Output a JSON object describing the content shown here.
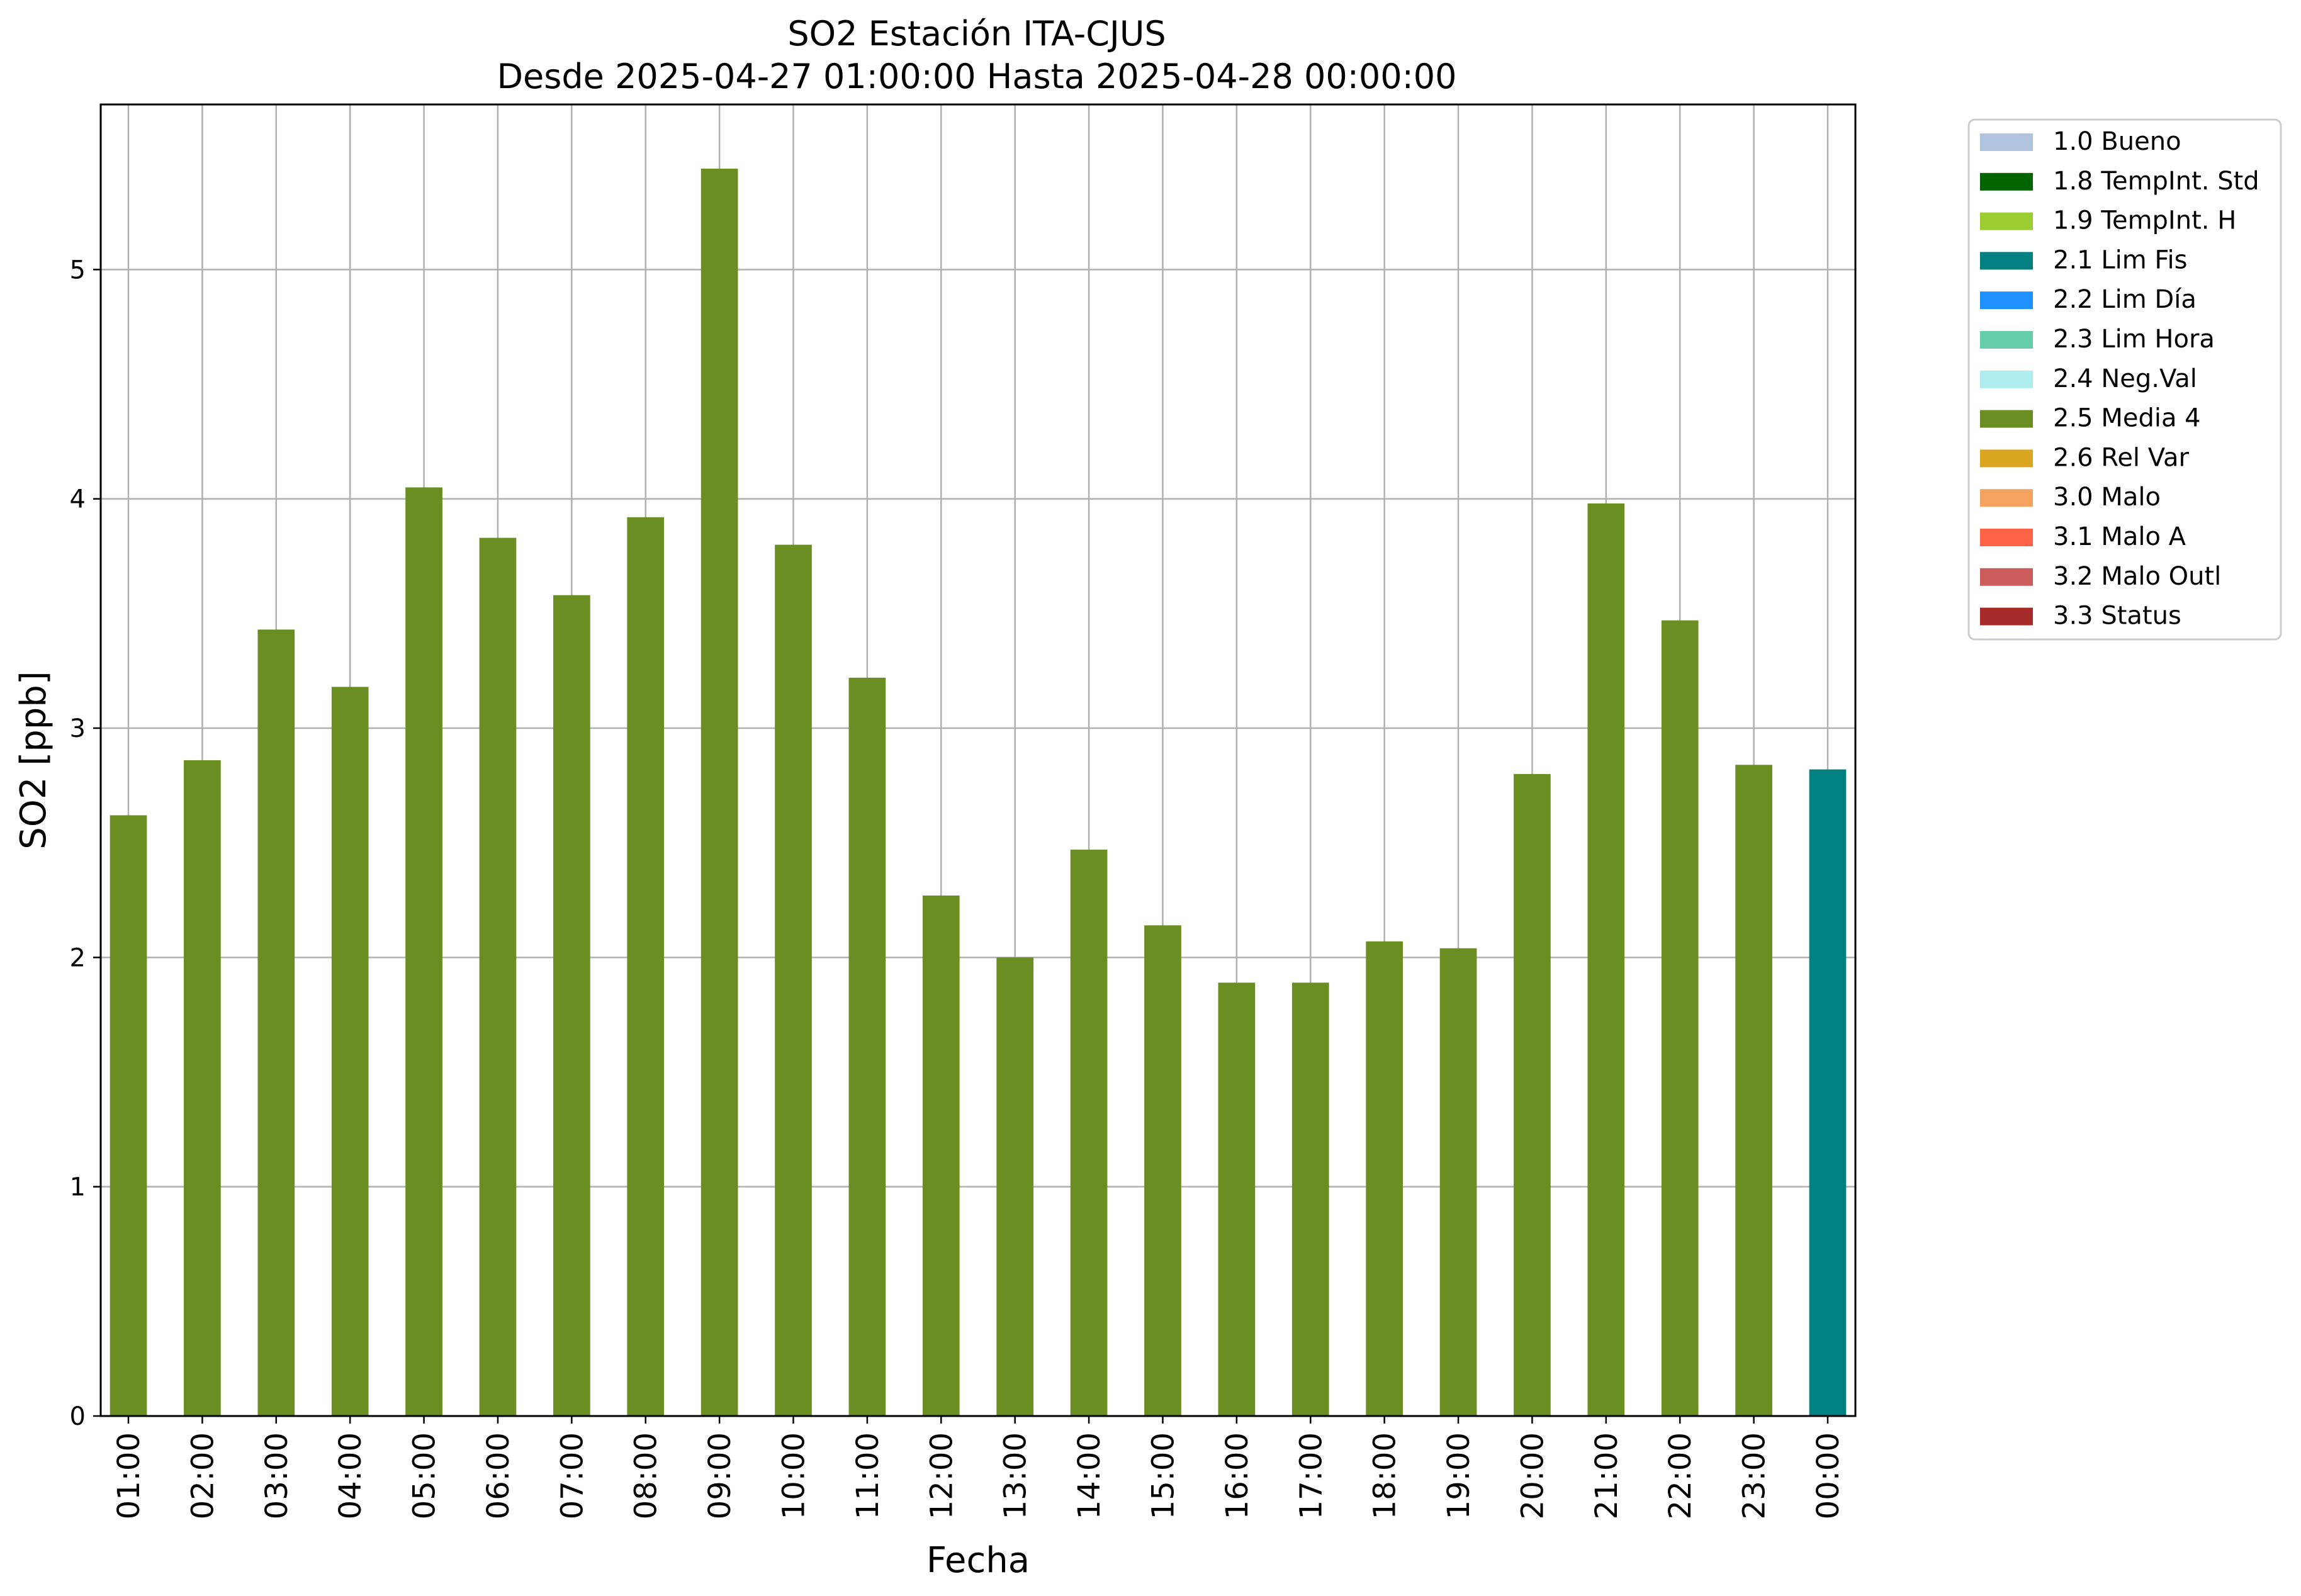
{
  "chart_data": {
    "type": "bar",
    "title": "SO2 Estación ITA-CJUS",
    "subtitle": "Desde 2025-04-27 01:00:00 Hasta 2025-04-28 00:00:00",
    "xlabel": "Fecha",
    "ylabel": "SO2 [ppb]",
    "ylim": [
      0,
      5.72
    ],
    "yticks": [
      0,
      1,
      2,
      3,
      4,
      5
    ],
    "grid": true,
    "legend_position": "outside-top-right",
    "categories": [
      "01:00",
      "02:00",
      "03:00",
      "04:00",
      "05:00",
      "06:00",
      "07:00",
      "08:00",
      "09:00",
      "10:00",
      "11:00",
      "12:00",
      "13:00",
      "14:00",
      "15:00",
      "16:00",
      "17:00",
      "18:00",
      "19:00",
      "20:00",
      "21:00",
      "22:00",
      "23:00",
      "00:00"
    ],
    "values": [
      2.62,
      2.86,
      3.43,
      3.18,
      4.05,
      3.83,
      3.58,
      3.92,
      5.44,
      3.8,
      3.22,
      2.27,
      2.0,
      2.47,
      2.14,
      1.89,
      1.89,
      2.07,
      2.04,
      2.8,
      3.98,
      3.47,
      2.84,
      2.82
    ],
    "flags": [
      "2.5 Media 4",
      "2.5 Media 4",
      "2.5 Media 4",
      "2.5 Media 4",
      "2.5 Media 4",
      "2.5 Media 4",
      "2.5 Media 4",
      "2.5 Media 4",
      "2.5 Media 4",
      "2.5 Media 4",
      "2.5 Media 4",
      "2.5 Media 4",
      "2.5 Media 4",
      "2.5 Media 4",
      "2.5 Media 4",
      "2.5 Media 4",
      "2.5 Media 4",
      "2.5 Media 4",
      "2.5 Media 4",
      "2.5 Media 4",
      "2.5 Media 4",
      "2.5 Media 4",
      "2.5 Media 4",
      "2.1 Lim Fis"
    ],
    "legend": [
      {
        "label": "1.0 Bueno",
        "color": "#b0c4de"
      },
      {
        "label": "1.8 TempInt. Std",
        "color": "#006400"
      },
      {
        "label": "1.9 TempInt. H",
        "color": "#9acd32"
      },
      {
        "label": "2.1 Lim Fis",
        "color": "#008080"
      },
      {
        "label": "2.2 Lim Día",
        "color": "#1e90ff"
      },
      {
        "label": "2.3 Lim Hora",
        "color": "#66cdaa"
      },
      {
        "label": "2.4 Neg.Val",
        "color": "#afeeee"
      },
      {
        "label": "2.5 Media 4",
        "color": "#6b8e23"
      },
      {
        "label": "2.6 Rel Var",
        "color": "#daa520"
      },
      {
        "label": "3.0 Malo",
        "color": "#f4a460"
      },
      {
        "label": "3.1 Malo A",
        "color": "#ff6347"
      },
      {
        "label": "3.2 Malo Outl",
        "color": "#cd5c5c"
      },
      {
        "label": "3.3 Status",
        "color": "#a52a2a"
      }
    ]
  }
}
